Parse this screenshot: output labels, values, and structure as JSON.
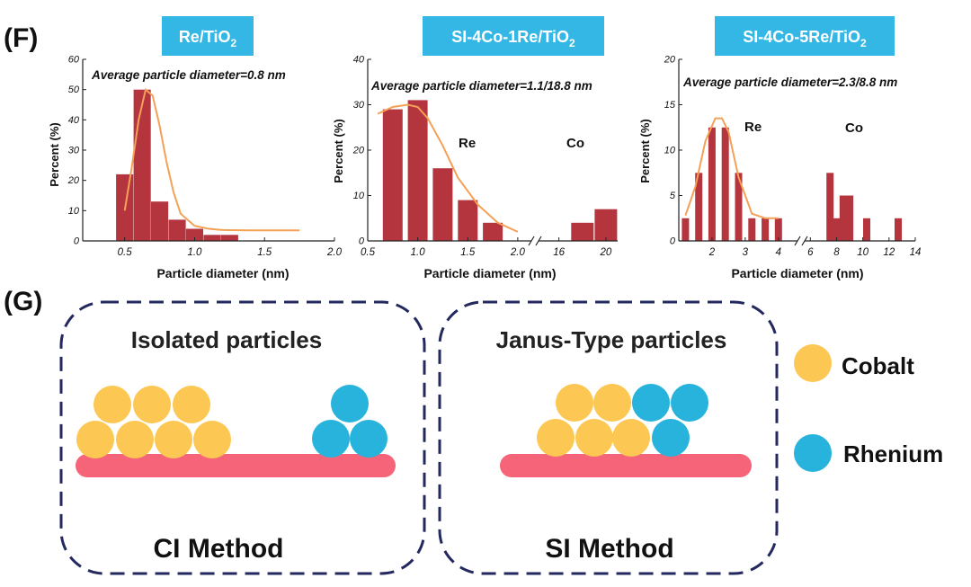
{
  "panel_f_label": "(F)",
  "panel_g_label": "(G)",
  "colors": {
    "bar": "#b5353f",
    "fit": "#f4a157",
    "title_bg": "#35b7e6",
    "title_text": "#ffffff",
    "cobalt": "#fcc753",
    "rhenium": "#27b3dc",
    "support": "#f56478",
    "dashed_border": "#23285e"
  },
  "chart_data": [
    {
      "type": "bar",
      "title_main": "Re/TiO",
      "title_sub": "2",
      "annotation": "Average particle diameter=0.8 nm",
      "xlabel": "Particle diameter (nm)",
      "ylabel": "Percent (%)",
      "xlim": [
        0.2,
        2.0
      ],
      "ylim": [
        0,
        60
      ],
      "xticks": [
        0.5,
        1.0,
        1.5,
        2.0
      ],
      "xtick_labels": [
        "0.5",
        "1.0",
        "1.5",
        "2.0"
      ],
      "yticks": [
        0,
        10,
        20,
        30,
        40,
        50,
        60
      ],
      "ytick_labels": [
        "0",
        "10",
        "20",
        "30",
        "40",
        "50",
        "60"
      ],
      "bin_width": 0.125,
      "x": [
        0.5,
        0.625,
        0.75,
        0.875,
        1.0,
        1.125,
        1.25,
        1.375,
        1.5,
        1.625,
        1.75
      ],
      "values": [
        22,
        50,
        13,
        7,
        4,
        2,
        2,
        0,
        0,
        0,
        0
      ],
      "fit_curve": {
        "x": [
          0.5,
          0.55,
          0.6,
          0.65,
          0.7,
          0.75,
          0.8,
          0.85,
          0.9,
          1.0,
          1.1,
          1.2,
          1.4,
          1.6,
          1.75
        ],
        "y": [
          10,
          24,
          40,
          50,
          48,
          38,
          26,
          16,
          9,
          5,
          4,
          3.6,
          3.5,
          3.5,
          3.5
        ]
      }
    },
    {
      "type": "bar",
      "title_main": "SI-4Co-1Re/TiO",
      "title_sub": "2",
      "annotation": "Average particle diameter=1.1/18.8 nm",
      "xlabel": "Particle diameter (nm)",
      "ylabel": "Percent (%)",
      "broken_axis": true,
      "xlim": [
        0.5,
        21
      ],
      "ylim": [
        0,
        40
      ],
      "xtick_labels": [
        "0.5",
        "1.0",
        "1.5",
        "2.0",
        "16",
        "20"
      ],
      "yticks": [
        0,
        10,
        20,
        30,
        40
      ],
      "ytick_labels": [
        "0",
        "10",
        "20",
        "30",
        "40"
      ],
      "x": [
        0.75,
        1.0,
        1.25,
        1.5,
        1.75,
        16,
        18,
        20
      ],
      "values": [
        29,
        31,
        16,
        9,
        4,
        0,
        4,
        7
      ],
      "region_labels": [
        "Re",
        "Co"
      ],
      "fit_curve": {
        "x": [
          0.6,
          0.75,
          0.9,
          1.0,
          1.1,
          1.25,
          1.4,
          1.6,
          1.8,
          2.0
        ],
        "y": [
          28,
          29.5,
          30,
          29.5,
          27,
          21,
          14,
          8,
          4,
          2
        ]
      }
    },
    {
      "type": "bar",
      "title_main": "SI-4Co-5Re/TiO",
      "title_sub": "2",
      "annotation": "Average particle diameter=2.3/8.8 nm",
      "xlabel": "Particle diameter (nm)",
      "ylabel": "Percent (%)",
      "broken_axis": true,
      "xlim": [
        1,
        14
      ],
      "ylim": [
        0,
        20
      ],
      "xtick_labels": [
        "2",
        "3",
        "4",
        "6",
        "8",
        "10",
        "12",
        "14"
      ],
      "yticks": [
        0,
        5,
        10,
        15,
        20
      ],
      "ytick_labels": [
        "0",
        "5",
        "10",
        "15",
        "20"
      ],
      "x": [
        1.6,
        2.0,
        2.4,
        2.8,
        3.2,
        3.6,
        4.0,
        7.5,
        8.0,
        8.5,
        9.0,
        10.3,
        12.7
      ],
      "values": [
        7.5,
        12.5,
        12.5,
        7.5,
        2.5,
        2.5,
        2.5,
        7.5,
        2.5,
        5,
        5,
        2.5,
        2.5
      ],
      "extra_bars_x": [
        1.2
      ],
      "extra_bars_values": [
        2.5
      ],
      "region_labels": [
        "Re",
        "Co"
      ],
      "fit_curve": {
        "x": [
          1.2,
          1.5,
          1.8,
          2.1,
          2.3,
          2.5,
          2.8,
          3.2,
          3.6,
          4.0
        ],
        "y": [
          2.8,
          6,
          11,
          13.5,
          13.5,
          12,
          7,
          3,
          2.5,
          2.5
        ]
      }
    }
  ],
  "schematics": [
    {
      "heading": "Isolated particles",
      "method": "CI Method"
    },
    {
      "heading": "Janus-Type particles",
      "method": "SI Method"
    }
  ],
  "legend": [
    {
      "label": "Cobalt",
      "color": "#fcc753"
    },
    {
      "label": "Rhenium",
      "color": "#27b3dc"
    }
  ]
}
